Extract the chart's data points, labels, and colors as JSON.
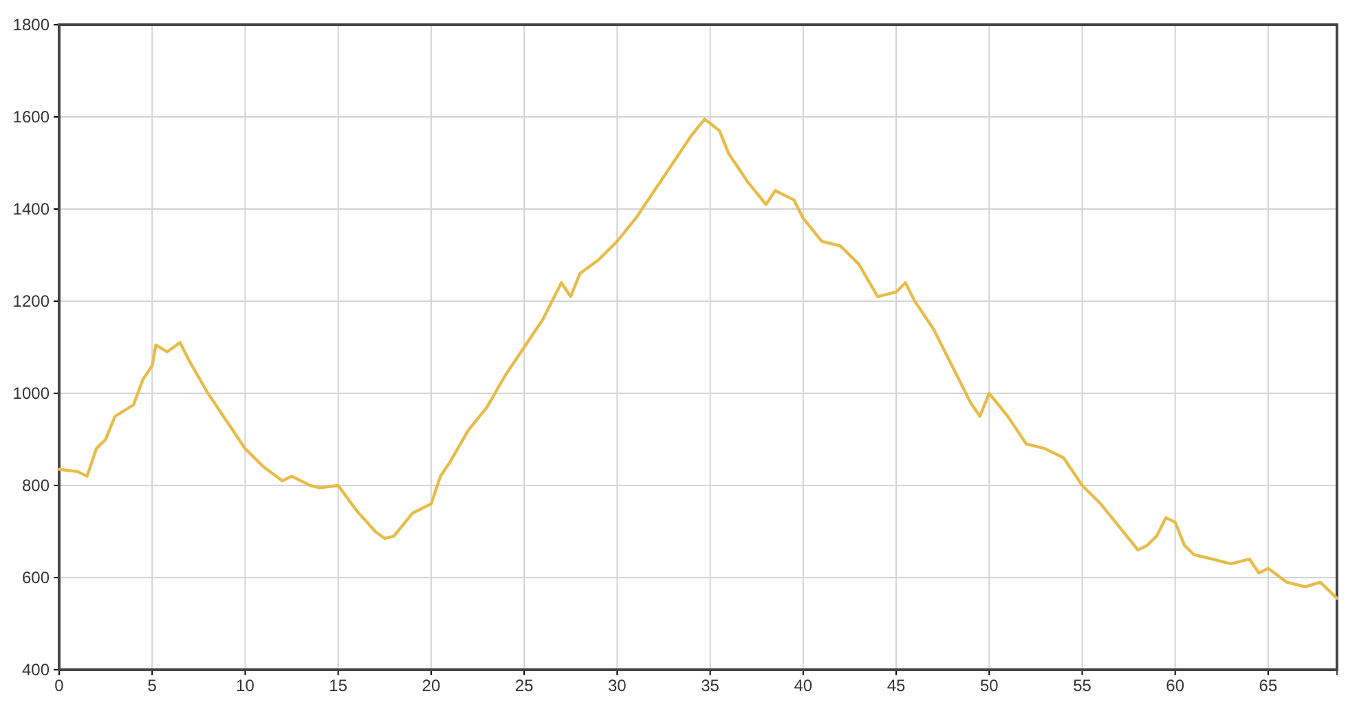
{
  "chart_data": {
    "type": "line",
    "xlim": [
      0,
      68.7
    ],
    "ylim": [
      400,
      1800
    ],
    "xticks": [
      0,
      5,
      10,
      15,
      20,
      25,
      30,
      35,
      40,
      45,
      50,
      55,
      60,
      65
    ],
    "yticks": [
      400,
      600,
      800,
      1000,
      1200,
      1400,
      1600,
      1800
    ],
    "grid": true,
    "marker": "none",
    "line_style": "solid",
    "series": [
      {
        "color": "#e8bc48",
        "x": [
          0,
          1,
          1.5,
          2,
          2.5,
          3,
          4,
          4.5,
          5,
          5.2,
          5.8,
          6.5,
          7,
          8,
          9,
          10,
          11,
          12,
          12.5,
          13.5,
          14,
          15,
          16,
          17,
          17.5,
          18,
          19,
          20,
          20.5,
          21,
          22,
          23,
          24,
          25,
          26,
          27,
          27.5,
          28,
          29,
          30,
          31,
          32,
          33,
          34,
          34.7,
          35.5,
          36,
          37,
          38,
          38.5,
          39.5,
          40,
          41,
          42,
          43,
          44,
          45,
          45.5,
          46,
          47,
          48,
          49,
          49.5,
          50,
          51,
          52,
          53,
          54,
          55,
          56,
          57,
          58,
          58.5,
          59,
          59.5,
          60,
          60.5,
          61,
          62,
          63,
          64,
          64.5,
          65,
          66,
          67,
          67.8,
          68.7
        ],
        "values": [
          835,
          830,
          820,
          880,
          900,
          950,
          975,
          1030,
          1060,
          1105,
          1090,
          1110,
          1070,
          1000,
          940,
          880,
          840,
          810,
          820,
          800,
          795,
          800,
          745,
          700,
          685,
          690,
          740,
          760,
          820,
          850,
          920,
          970,
          1040,
          1100,
          1160,
          1240,
          1210,
          1260,
          1290,
          1330,
          1380,
          1440,
          1500,
          1560,
          1595,
          1570,
          1520,
          1460,
          1410,
          1440,
          1420,
          1380,
          1330,
          1320,
          1280,
          1210,
          1220,
          1240,
          1200,
          1140,
          1060,
          980,
          950,
          1000,
          950,
          890,
          880,
          860,
          800,
          760,
          710,
          660,
          670,
          690,
          730,
          720,
          670,
          650,
          640,
          630,
          640,
          610,
          620,
          590,
          580,
          590,
          555
        ]
      }
    ]
  }
}
